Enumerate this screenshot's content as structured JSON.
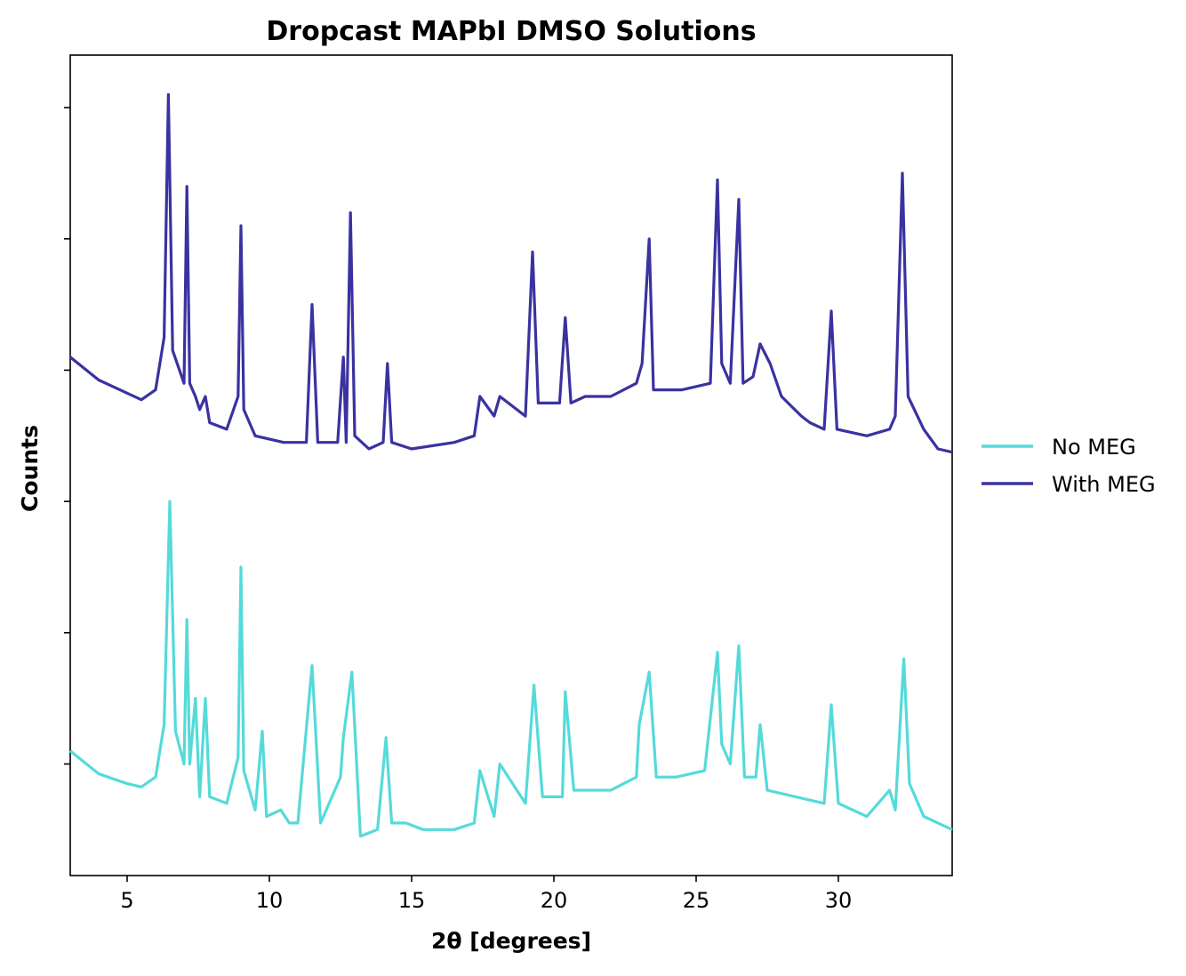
{
  "chart_data": {
    "type": "line",
    "title": "Dropcast MAPbI DMSO Solutions",
    "xlabel": "2θ [degrees]",
    "ylabel": "Counts",
    "xlim": [
      3,
      34
    ],
    "ylim": [
      0,
      12.5
    ],
    "x_ticks": [
      5,
      10,
      15,
      20,
      25,
      30
    ],
    "y_ticks": [
      1.7,
      3.7,
      5.7,
      7.7,
      9.7,
      11.7
    ],
    "y_tick_labels_shown": false,
    "grid": false,
    "legend": {
      "placement": "right-outside"
    },
    "series": [
      {
        "name": "No MEG",
        "color": "#55dada",
        "x": [
          3.0,
          4.0,
          5.0,
          5.5,
          6.0,
          6.3,
          6.5,
          6.7,
          7.0,
          7.1,
          7.2,
          7.4,
          7.55,
          7.75,
          7.9,
          8.5,
          8.9,
          9.0,
          9.1,
          9.5,
          9.75,
          9.9,
          10.4,
          10.7,
          11.0,
          11.5,
          11.8,
          12.5,
          12.6,
          12.9,
          13.2,
          13.8,
          14.1,
          14.3,
          14.8,
          15.4,
          16.5,
          17.2,
          17.4,
          17.9,
          18.1,
          19.0,
          19.3,
          19.6,
          20.3,
          20.4,
          20.7,
          22.0,
          22.9,
          23.0,
          23.35,
          23.6,
          24.3,
          25.3,
          25.75,
          25.9,
          26.2,
          26.5,
          26.7,
          27.1,
          27.25,
          27.5,
          28.5,
          29.5,
          29.75,
          30.0,
          31.0,
          31.8,
          32.0,
          32.3,
          32.5,
          33.0,
          33.5,
          34.0
        ],
        "values": [
          1.9,
          1.55,
          1.4,
          1.35,
          1.5,
          2.3,
          5.7,
          2.2,
          1.7,
          3.9,
          1.7,
          2.7,
          1.2,
          2.7,
          1.2,
          1.1,
          1.8,
          4.7,
          1.6,
          1.0,
          2.2,
          0.9,
          1.0,
          0.8,
          0.8,
          3.2,
          0.8,
          1.5,
          2.1,
          3.1,
          0.6,
          0.7,
          2.1,
          0.8,
          0.8,
          0.7,
          0.7,
          0.8,
          1.6,
          0.9,
          1.7,
          1.1,
          2.9,
          1.2,
          1.2,
          2.8,
          1.3,
          1.3,
          1.5,
          2.3,
          3.1,
          1.5,
          1.5,
          1.6,
          3.4,
          2.0,
          1.7,
          3.5,
          1.5,
          1.5,
          2.3,
          1.3,
          1.2,
          1.1,
          2.6,
          1.1,
          0.9,
          1.3,
          1.0,
          3.3,
          1.4,
          0.9,
          0.8,
          0.7
        ]
      },
      {
        "name": "With MEG",
        "color": "#3a32a0",
        "x": [
          3.0,
          4.0,
          5.0,
          5.5,
          6.0,
          6.3,
          6.45,
          6.6,
          7.0,
          7.1,
          7.2,
          7.4,
          7.55,
          7.75,
          7.9,
          8.5,
          8.9,
          9.0,
          9.1,
          9.5,
          10.5,
          11.3,
          11.5,
          11.7,
          12.4,
          12.6,
          12.7,
          12.85,
          13.0,
          13.5,
          14.0,
          14.15,
          14.3,
          15.0,
          16.5,
          17.2,
          17.4,
          17.9,
          18.1,
          19.0,
          19.25,
          19.45,
          20.2,
          20.4,
          20.6,
          21.1,
          22.0,
          22.9,
          23.1,
          23.35,
          23.5,
          24.5,
          25.5,
          25.75,
          25.9,
          26.2,
          26.5,
          26.65,
          27.0,
          27.25,
          27.6,
          28.0,
          28.7,
          29.0,
          29.5,
          29.75,
          29.95,
          31.0,
          31.8,
          32.0,
          32.25,
          32.45,
          33.0,
          33.5,
          34.0
        ],
        "values": [
          7.9,
          7.55,
          7.35,
          7.25,
          7.4,
          8.2,
          11.9,
          8.0,
          7.5,
          10.5,
          7.5,
          7.3,
          7.1,
          7.3,
          6.9,
          6.8,
          7.3,
          9.9,
          7.1,
          6.7,
          6.6,
          6.6,
          8.7,
          6.6,
          6.6,
          7.9,
          6.6,
          10.1,
          6.7,
          6.5,
          6.6,
          7.8,
          6.6,
          6.5,
          6.6,
          6.7,
          7.3,
          7.0,
          7.3,
          7.0,
          9.5,
          7.2,
          7.2,
          8.5,
          7.2,
          7.3,
          7.3,
          7.5,
          7.8,
          9.7,
          7.4,
          7.4,
          7.5,
          10.6,
          7.8,
          7.5,
          10.3,
          7.5,
          7.6,
          8.1,
          7.8,
          7.3,
          7.0,
          6.9,
          6.8,
          8.6,
          6.8,
          6.7,
          6.8,
          7.0,
          10.7,
          7.3,
          6.8,
          6.5,
          6.45
        ]
      }
    ]
  }
}
